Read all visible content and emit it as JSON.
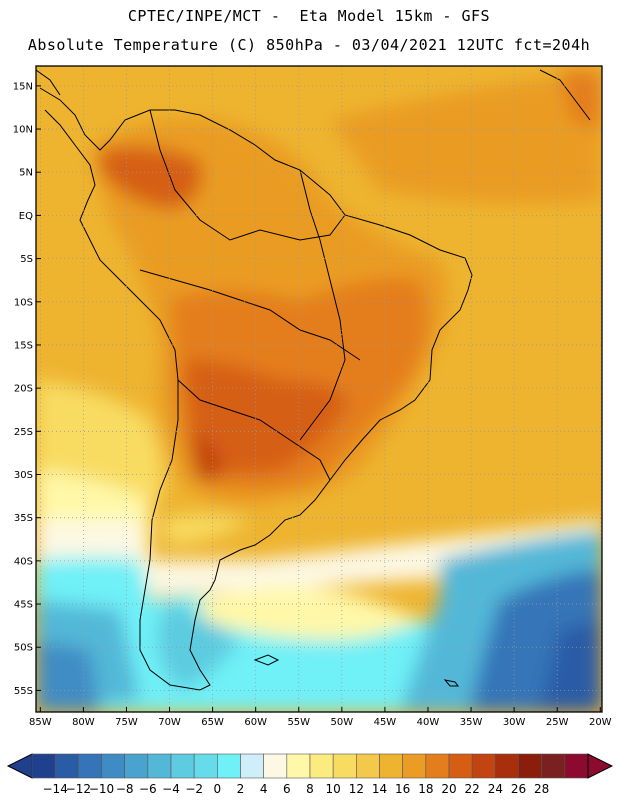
{
  "header": {
    "line1": "CPTEC/INPE/MCT -  Eta Model 15km - GFS",
    "line2": "Absolute Temperature (C) 850hPa - 03/04/2021 12UTC fct=204h"
  },
  "map": {
    "lat_labels": [
      "15N",
      "10N",
      "5N",
      "EQ",
      "5S",
      "10S",
      "15S",
      "20S",
      "25S",
      "30S",
      "35S",
      "40S",
      "45S",
      "50S",
      "55S"
    ],
    "lat_values": [
      15,
      10,
      5,
      0,
      -5,
      -10,
      -15,
      -20,
      -25,
      -30,
      -35,
      -40,
      -45,
      -50,
      -55
    ],
    "lon_labels": [
      "85W",
      "80W",
      "75W",
      "70W",
      "65W",
      "60W",
      "55W",
      "50W",
      "45W",
      "40W",
      "35W",
      "30W",
      "25W",
      "20W"
    ],
    "lon_values": [
      -85,
      -80,
      -75,
      -70,
      -65,
      -60,
      -55,
      -50,
      -45,
      -40,
      -35,
      -30,
      -25,
      -20
    ],
    "extent": {
      "lon_min": -85.5,
      "lon_max": -19.8,
      "lat_min": -57.5,
      "lat_max": 17.3
    },
    "grid": "dotted"
  },
  "colorbar": {
    "labels": [
      "-14",
      "-12",
      "-10",
      "-8",
      "-6",
      "-4",
      "-2",
      "0",
      "2",
      "4",
      "6",
      "8",
      "10",
      "12",
      "14",
      "16",
      "18",
      "20",
      "22",
      "24",
      "26",
      "28"
    ],
    "colors": [
      "#1f3f8f",
      "#2a5ca6",
      "#3574b8",
      "#3f8cc4",
      "#4aa3cf",
      "#53b8d8",
      "#5dcbe0",
      "#66dceb",
      "#70f0f7",
      "#cfeefa",
      "#fdf8e3",
      "#fff8a8",
      "#fcec80",
      "#f8dc62",
      "#f4c84a",
      "#eeb430",
      "#ea9c24",
      "#e47e1c",
      "#d65e14",
      "#c24410",
      "#a82e0c",
      "#8a1e0a",
      "#7a2020",
      "#8b0a2e"
    ],
    "under_color": "#1f3f8f",
    "over_color": "#8b0a2e"
  }
}
